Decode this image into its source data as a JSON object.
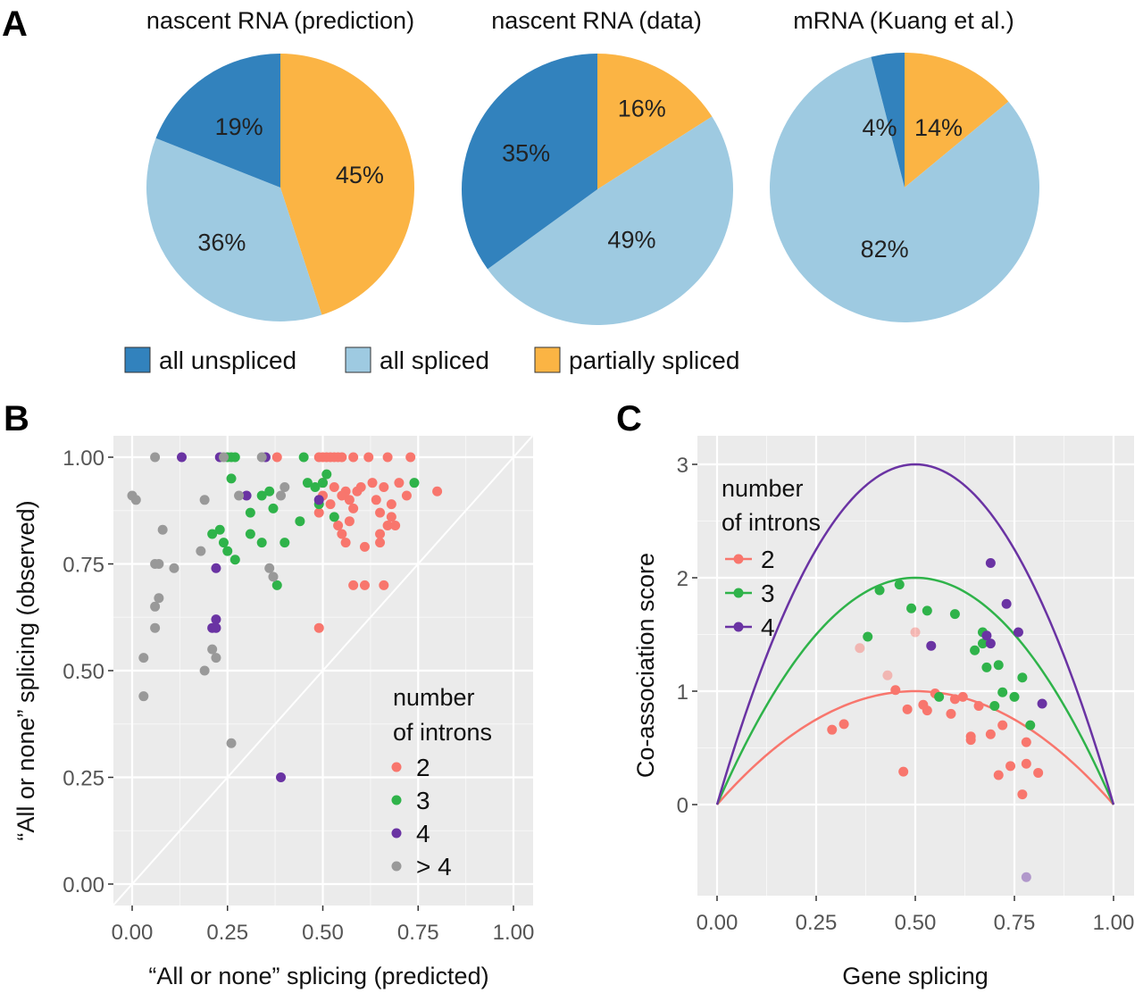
{
  "panels": {
    "a": "A",
    "b": "B",
    "c": "C"
  },
  "colors": {
    "all_unspliced": "#3282bd",
    "all_spliced": "#9ecae1",
    "partially_spliced": "#fbb444",
    "introns_2": "#f8766d",
    "introns_3": "#2fb34a",
    "introns_4": "#6a33a3",
    "introns_gt4": "#999999",
    "panel_bg": "#ebebeb",
    "grid": "#ffffff"
  },
  "pie_legend": {
    "items": [
      {
        "label": "all unspliced",
        "color_key": "all_unspliced"
      },
      {
        "label": "all spliced",
        "color_key": "all_spliced"
      },
      {
        "label": "partially spliced",
        "color_key": "partially_spliced"
      }
    ]
  },
  "chart_data": [
    {
      "type": "pie",
      "title": "nascent RNA (prediction)",
      "slices": [
        {
          "name": "partially spliced",
          "value": 45,
          "label": "45%"
        },
        {
          "name": "all spliced",
          "value": 36,
          "label": "36%"
        },
        {
          "name": "all unspliced",
          "value": 19,
          "label": "19%"
        }
      ]
    },
    {
      "type": "pie",
      "title": "nascent RNA (data)",
      "slices": [
        {
          "name": "partially spliced",
          "value": 16,
          "label": "16%"
        },
        {
          "name": "all spliced",
          "value": 49,
          "label": "49%"
        },
        {
          "name": "all unspliced",
          "value": 35,
          "label": "35%"
        }
      ]
    },
    {
      "type": "pie",
      "title": "mRNA (Kuang et al.)",
      "slices": [
        {
          "name": "partially spliced",
          "value": 14,
          "label": "14%"
        },
        {
          "name": "all spliced",
          "value": 82,
          "label": "82%"
        },
        {
          "name": "all unspliced",
          "value": 4,
          "label": "4%"
        }
      ]
    },
    {
      "type": "scatter",
      "xlabel": "“All or none” splicing (predicted)",
      "ylabel": "“All or none” splicing (observed)",
      "xlim": [
        -0.05,
        1.05
      ],
      "ylim": [
        -0.05,
        1.05
      ],
      "xticks": [
        "0.00",
        "0.25",
        "0.50",
        "0.75",
        "1.00"
      ],
      "yticks": [
        "0.00",
        "0.25",
        "0.50",
        "0.75",
        "1.00"
      ],
      "grid": true,
      "diagonal": true,
      "legend": {
        "title_lines": [
          "number",
          "of introns"
        ],
        "position": "bottom-right"
      },
      "series": [
        {
          "name": "2",
          "color_key": "introns_2",
          "points": [
            [
              0.38,
              1.0
            ],
            [
              0.49,
              1.0
            ],
            [
              0.5,
              1.0
            ],
            [
              0.51,
              1.0
            ],
            [
              0.52,
              1.0
            ],
            [
              0.53,
              1.0
            ],
            [
              0.54,
              1.0
            ],
            [
              0.55,
              1.0
            ],
            [
              0.58,
              1.0
            ],
            [
              0.62,
              1.0
            ],
            [
              0.67,
              1.0
            ],
            [
              0.73,
              1.0
            ],
            [
              0.5,
              0.94
            ],
            [
              0.53,
              0.93
            ],
            [
              0.56,
              0.92
            ],
            [
              0.6,
              0.93
            ],
            [
              0.63,
              0.94
            ],
            [
              0.66,
              0.93
            ],
            [
              0.7,
              0.94
            ],
            [
              0.8,
              0.92
            ],
            [
              0.5,
              0.91
            ],
            [
              0.52,
              0.89
            ],
            [
              0.55,
              0.91
            ],
            [
              0.57,
              0.9
            ],
            [
              0.59,
              0.92
            ],
            [
              0.64,
              0.9
            ],
            [
              0.68,
              0.89
            ],
            [
              0.72,
              0.91
            ],
            [
              0.49,
              0.87
            ],
            [
              0.58,
              0.88
            ],
            [
              0.65,
              0.87
            ],
            [
              0.68,
              0.86
            ],
            [
              0.54,
              0.84
            ],
            [
              0.57,
              0.85
            ],
            [
              0.67,
              0.84
            ],
            [
              0.69,
              0.84
            ],
            [
              0.55,
              0.82
            ],
            [
              0.65,
              0.82
            ],
            [
              0.56,
              0.8
            ],
            [
              0.65,
              0.8
            ],
            [
              0.61,
              0.79
            ],
            [
              0.58,
              0.7
            ],
            [
              0.61,
              0.7
            ],
            [
              0.66,
              0.7
            ],
            [
              0.49,
              0.6
            ]
          ]
        },
        {
          "name": "3",
          "color_key": "introns_3",
          "points": [
            [
              0.25,
              1.0
            ],
            [
              0.26,
              1.0
            ],
            [
              0.27,
              1.0
            ],
            [
              0.45,
              1.0
            ],
            [
              0.51,
              0.96
            ],
            [
              0.46,
              0.94
            ],
            [
              0.48,
              0.93
            ],
            [
              0.5,
              0.94
            ],
            [
              0.74,
              0.94
            ],
            [
              0.26,
              0.95
            ],
            [
              0.36,
              0.92
            ],
            [
              0.34,
              0.91
            ],
            [
              0.31,
              0.87
            ],
            [
              0.49,
              0.89
            ],
            [
              0.44,
              0.85
            ],
            [
              0.53,
              0.86
            ],
            [
              0.37,
              0.88
            ],
            [
              0.21,
              0.82
            ],
            [
              0.23,
              0.83
            ],
            [
              0.24,
              0.8
            ],
            [
              0.31,
              0.82
            ],
            [
              0.25,
              0.78
            ],
            [
              0.27,
              0.76
            ],
            [
              0.34,
              0.8
            ],
            [
              0.4,
              0.8
            ],
            [
              0.38,
              0.7
            ]
          ]
        },
        {
          "name": "4",
          "color_key": "introns_4",
          "points": [
            [
              0.13,
              1.0
            ],
            [
              0.23,
              1.0
            ],
            [
              0.35,
              1.0
            ],
            [
              0.3,
              0.91
            ],
            [
              0.49,
              0.9
            ],
            [
              0.22,
              0.74
            ],
            [
              0.22,
              0.62
            ],
            [
              0.21,
              0.6
            ],
            [
              0.22,
              0.6
            ],
            [
              0.39,
              0.25
            ]
          ]
        },
        {
          "name": "> 4",
          "color_key": "introns_gt4",
          "points": [
            [
              0.06,
              1.0
            ],
            [
              0.24,
              1.0
            ],
            [
              0.34,
              1.0
            ],
            [
              0.0,
              0.91
            ],
            [
              0.01,
              0.9
            ],
            [
              0.19,
              0.9
            ],
            [
              0.28,
              0.91
            ],
            [
              0.4,
              0.93
            ],
            [
              0.39,
              0.91
            ],
            [
              0.08,
              0.83
            ],
            [
              0.18,
              0.78
            ],
            [
              0.06,
              0.75
            ],
            [
              0.07,
              0.75
            ],
            [
              0.11,
              0.74
            ],
            [
              0.36,
              0.74
            ],
            [
              0.37,
              0.72
            ],
            [
              0.07,
              0.67
            ],
            [
              0.06,
              0.65
            ],
            [
              0.06,
              0.6
            ],
            [
              0.21,
              0.55
            ],
            [
              0.22,
              0.53
            ],
            [
              0.03,
              0.53
            ],
            [
              0.19,
              0.5
            ],
            [
              0.03,
              0.44
            ],
            [
              0.26,
              0.33
            ]
          ]
        }
      ]
    },
    {
      "type": "line",
      "xlabel": "Gene splicing",
      "ylabel": "Co-association score",
      "xlim": [
        -0.0,
        1.0
      ],
      "ylim": [
        -0.8,
        3.2
      ],
      "xticks": [
        "0.00",
        "0.25",
        "0.50",
        "0.75",
        "1.00"
      ],
      "yticks": [
        "0",
        "1",
        "2",
        "3"
      ],
      "grid": true,
      "legend": {
        "title_lines": [
          "number",
          "of introns"
        ],
        "position": "top-left"
      },
      "series": [
        {
          "name": "2",
          "color_key": "introns_2",
          "peak": 1,
          "points": [
            [
              0.29,
              0.66
            ],
            [
              0.32,
              0.71
            ],
            [
              0.36,
              1.38
            ],
            [
              0.43,
              1.14
            ],
            [
              0.45,
              1.01
            ],
            [
              0.47,
              0.29
            ],
            [
              0.48,
              0.84
            ],
            [
              0.5,
              1.52
            ],
            [
              0.52,
              0.88
            ],
            [
              0.53,
              0.83
            ],
            [
              0.55,
              0.98
            ],
            [
              0.59,
              0.8
            ],
            [
              0.6,
              0.93
            ],
            [
              0.62,
              0.95
            ],
            [
              0.64,
              0.6
            ],
            [
              0.64,
              0.57
            ],
            [
              0.66,
              0.87
            ],
            [
              0.69,
              0.62
            ],
            [
              0.71,
              0.26
            ],
            [
              0.72,
              0.7
            ],
            [
              0.74,
              0.34
            ],
            [
              0.77,
              0.09
            ],
            [
              0.78,
              0.55
            ],
            [
              0.78,
              0.36
            ],
            [
              0.81,
              0.28
            ]
          ]
        },
        {
          "name": "3",
          "color_key": "introns_3",
          "peak": 2,
          "points": [
            [
              0.38,
              1.48
            ],
            [
              0.41,
              1.89
            ],
            [
              0.46,
              1.94
            ],
            [
              0.49,
              1.73
            ],
            [
              0.53,
              1.71
            ],
            [
              0.56,
              0.95
            ],
            [
              0.6,
              1.68
            ],
            [
              0.65,
              1.36
            ],
            [
              0.67,
              1.42
            ],
            [
              0.67,
              1.52
            ],
            [
              0.68,
              1.21
            ],
            [
              0.7,
              0.87
            ],
            [
              0.71,
              1.23
            ],
            [
              0.72,
              0.99
            ],
            [
              0.75,
              0.95
            ],
            [
              0.77,
              1.12
            ],
            [
              0.79,
              0.7
            ]
          ]
        },
        {
          "name": "4",
          "color_key": "introns_4",
          "peak": 3,
          "points": [
            [
              0.54,
              1.4
            ],
            [
              0.68,
              1.49
            ],
            [
              0.69,
              2.13
            ],
            [
              0.69,
              1.42
            ],
            [
              0.73,
              1.77
            ],
            [
              0.76,
              1.52
            ],
            [
              0.82,
              0.89
            ],
            [
              0.78,
              -0.64
            ]
          ]
        }
      ]
    }
  ]
}
